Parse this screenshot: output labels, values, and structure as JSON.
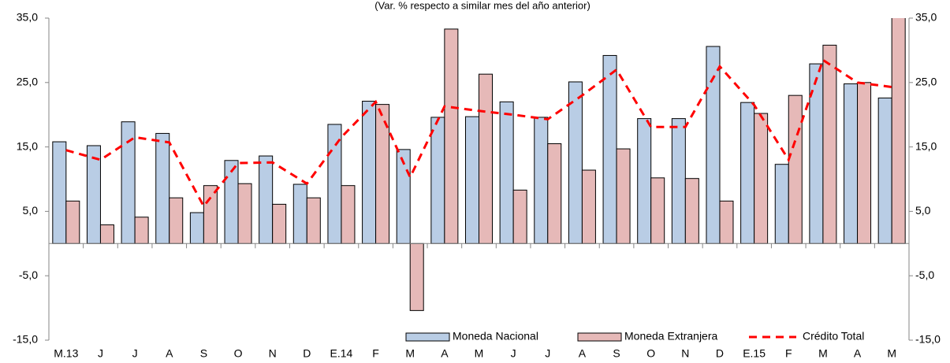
{
  "chart_data": {
    "type": "bar-line",
    "title": "(Var. % respecto a similar mes del año anterior)",
    "categories": [
      "M.13",
      "J",
      "J",
      "A",
      "S",
      "O",
      "N",
      "D",
      "E.14",
      "F",
      "M",
      "A",
      "M",
      "J",
      "J",
      "A",
      "S",
      "O",
      "N",
      "D",
      "E.15",
      "F",
      "M",
      "A",
      "M"
    ],
    "series": [
      {
        "name": "Moneda Nacional",
        "type": "bar",
        "color": "#b9cde5",
        "values": [
          15.8,
          15.2,
          18.9,
          17.1,
          4.8,
          12.9,
          13.6,
          9.2,
          18.5,
          22.1,
          14.6,
          19.6,
          19.7,
          22.0,
          19.6,
          25.1,
          29.2,
          19.4,
          19.4,
          30.6,
          21.9,
          12.3,
          27.9,
          24.8,
          22.6
        ]
      },
      {
        "name": "Moneda Extranjera",
        "type": "bar",
        "color": "#e6b9b8",
        "values": [
          6.6,
          2.9,
          4.1,
          7.1,
          9.0,
          9.3,
          6.1,
          7.1,
          9.0,
          21.6,
          -10.4,
          33.3,
          26.3,
          8.3,
          15.5,
          11.4,
          14.7,
          10.2,
          10.1,
          6.6,
          20.2,
          23.0,
          30.8,
          25.0,
          35.5
        ]
      },
      {
        "name": "Crédito Total",
        "type": "line",
        "color": "#ff0000",
        "values": [
          14.5,
          13.0,
          16.5,
          15.7,
          5.8,
          12.5,
          12.6,
          9.3,
          16.5,
          22.0,
          10.3,
          21.3,
          20.6,
          20.0,
          19.3,
          23.0,
          27.0,
          18.1,
          18.1,
          27.5,
          21.5,
          13.0,
          28.5,
          25.0,
          24.3
        ]
      }
    ],
    "ylim": [
      -15,
      35
    ],
    "yticks": [
      {
        "value": -15,
        "label": "-15,0"
      },
      {
        "value": -5,
        "label": "-5,0"
      },
      {
        "value": 5,
        "label": "5,0"
      },
      {
        "value": 15,
        "label": "15,0"
      },
      {
        "value": 25,
        "label": "25,0"
      },
      {
        "value": 35,
        "label": "35,0"
      }
    ],
    "y2lim": [
      -15,
      35
    ],
    "y2ticks": [
      {
        "value": -15,
        "label": "-15,0"
      },
      {
        "value": -5,
        "label": "-5,0"
      },
      {
        "value": 5,
        "label": "5,0"
      },
      {
        "value": 15,
        "label": "15,0"
      },
      {
        "value": 25,
        "label": "25,0"
      },
      {
        "value": 35,
        "label": "35,0"
      }
    ],
    "legend": "bottom-right"
  }
}
